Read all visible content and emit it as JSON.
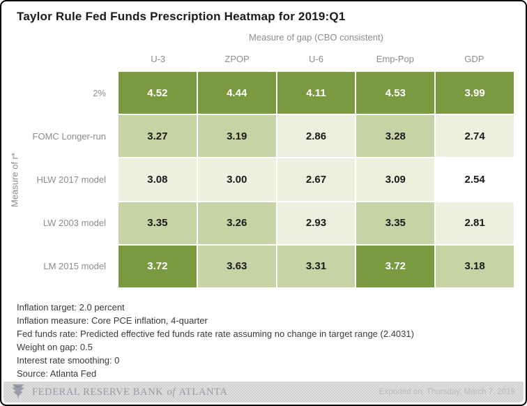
{
  "title": "Taylor Rule Fed Funds Prescription Heatmap for 2019:Q1",
  "chart_data": {
    "type": "heatmap",
    "title": "Taylor Rule Fed Funds Prescription Heatmap for 2019:Q1",
    "x_axis_label": "Measure of gap (CBO consistent)",
    "y_axis_label": "Measure of r*",
    "columns": [
      "U-3",
      "ZPOP",
      "U-6",
      "Emp-Pop",
      "GDP"
    ],
    "rows": [
      "2%",
      "FOMC Longer-run",
      "HLW 2017 model",
      "LW 2003 model",
      "LM 2015 model"
    ],
    "values": [
      [
        4.52,
        4.44,
        4.11,
        4.53,
        3.99
      ],
      [
        3.27,
        3.19,
        2.86,
        3.28,
        2.74
      ],
      [
        3.08,
        3.0,
        2.67,
        3.09,
        2.54
      ],
      [
        3.35,
        3.26,
        2.93,
        3.35,
        2.81
      ],
      [
        3.72,
        3.63,
        3.31,
        3.72,
        3.18
      ]
    ],
    "value_range": [
      2.54,
      4.53
    ],
    "color_scale": {
      "bins": [
        {
          "max": 2.6,
          "bg": "#ffffff",
          "text": "#1a1a1a"
        },
        {
          "max": 3.15,
          "bg": "#ecf0de",
          "text": "#1a1a1a"
        },
        {
          "max": 3.7,
          "bg": "#c7d2a5",
          "text": "#1a1a1a"
        },
        {
          "max": 99.0,
          "bg": "#7a9a3f",
          "text": "#ffffff"
        }
      ]
    },
    "grid": false,
    "legend": "none"
  },
  "notes": [
    "Inflation target: 2.0 percent",
    "Inflation measure: Core PCE inflation, 4-quarter",
    "Fed funds rate: Predicted effective fed funds rate rate assuming no change in target range (2.4031)",
    "Weight on gap: 0.5",
    "Interest rate smoothing: 0",
    "Source: Atlanta Fed"
  ],
  "footer_bar": {
    "bank_name_part1": "FEDERAL RESERVE BANK",
    "bank_name_part2": "of",
    "bank_name_part3": "ATLANTA",
    "exported_on": "Exported on: Thursday, March 7, 2019",
    "bar_color": "#d9d9d9",
    "text_color": "#979aa6"
  }
}
